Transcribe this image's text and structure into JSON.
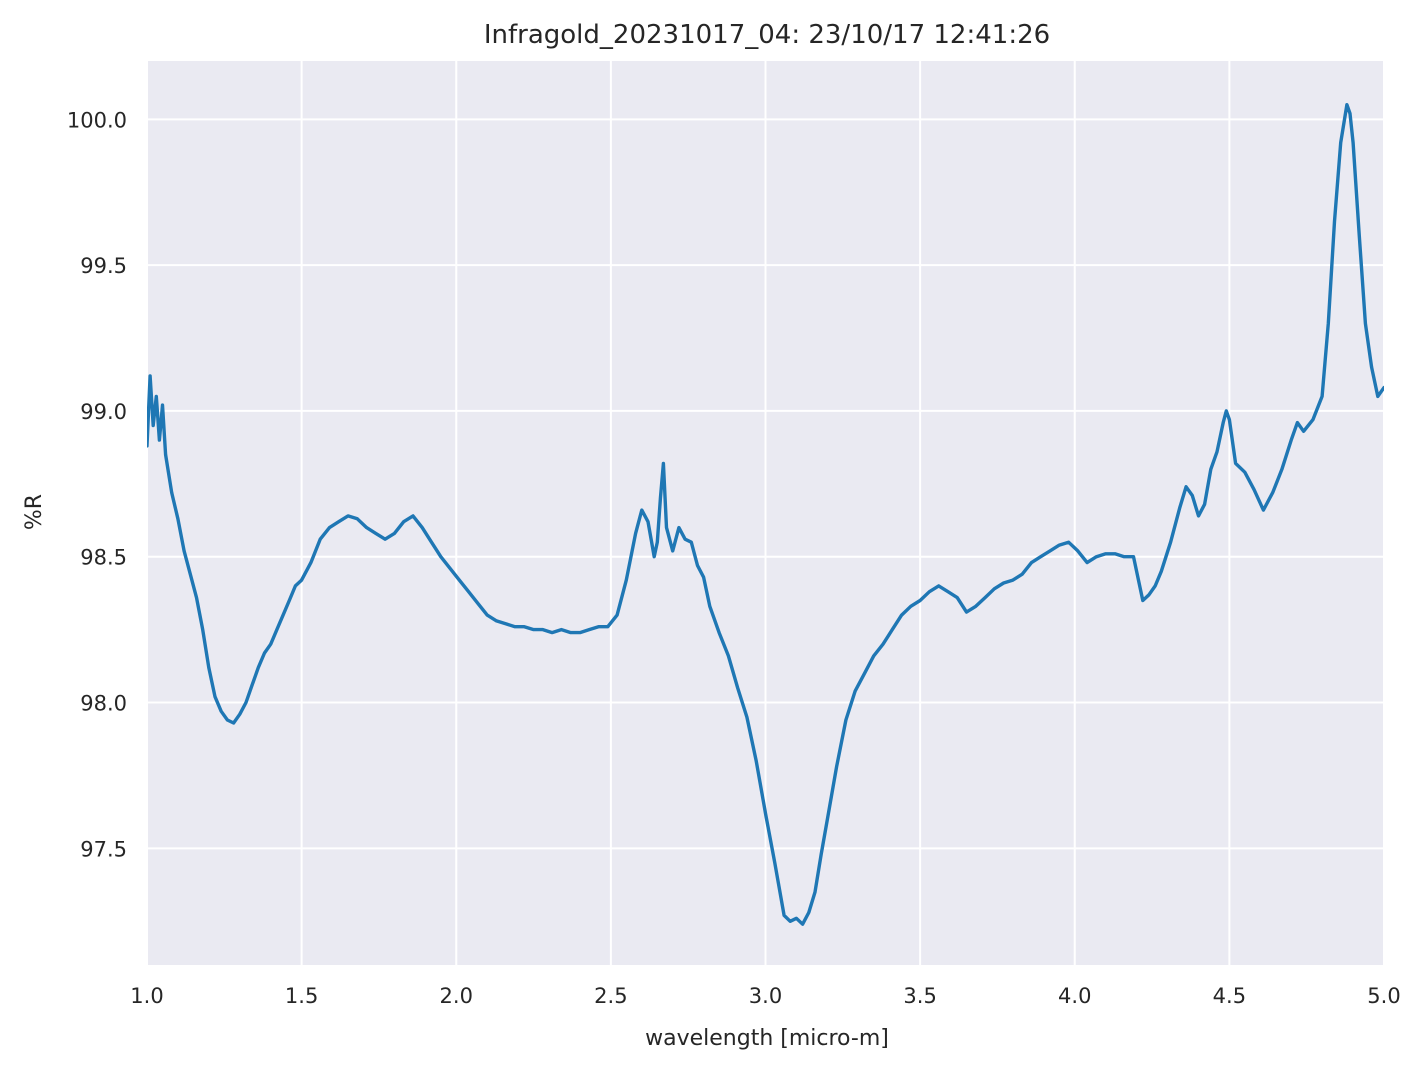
{
  "chart_data": {
    "type": "line",
    "title": "Infragold_20231017_04:  23/10/17 12:41:26",
    "xlabel": "wavelength [micro-m]",
    "ylabel": "%R",
    "xlim": [
      1.0,
      5.0
    ],
    "ylim": [
      97.1,
      100.2
    ],
    "xticks": [
      1.0,
      1.5,
      2.0,
      2.5,
      3.0,
      3.5,
      4.0,
      4.5,
      5.0
    ],
    "xtick_labels": [
      "1.0",
      "1.5",
      "2.0",
      "2.5",
      "3.0",
      "3.5",
      "4.0",
      "4.5",
      "5.0"
    ],
    "yticks": [
      97.5,
      98.0,
      98.5,
      99.0,
      99.5,
      100.0
    ],
    "ytick_labels": [
      "97.5",
      "98.0",
      "98.5",
      "99.0",
      "99.5",
      "100.0"
    ],
    "grid": true,
    "background": "#eaeaf2",
    "grid_color": "#ffffff",
    "series": [
      {
        "color": "#1f77b4",
        "x": [
          1.0,
          1.01,
          1.02,
          1.03,
          1.04,
          1.05,
          1.06,
          1.08,
          1.1,
          1.12,
          1.14,
          1.16,
          1.18,
          1.2,
          1.22,
          1.24,
          1.26,
          1.28,
          1.3,
          1.32,
          1.34,
          1.36,
          1.38,
          1.4,
          1.42,
          1.44,
          1.46,
          1.48,
          1.5,
          1.53,
          1.56,
          1.59,
          1.62,
          1.65,
          1.68,
          1.71,
          1.74,
          1.77,
          1.8,
          1.83,
          1.86,
          1.89,
          1.92,
          1.95,
          1.98,
          2.01,
          2.04,
          2.07,
          2.1,
          2.13,
          2.16,
          2.19,
          2.22,
          2.25,
          2.28,
          2.31,
          2.34,
          2.37,
          2.4,
          2.43,
          2.46,
          2.49,
          2.52,
          2.55,
          2.58,
          2.6,
          2.62,
          2.64,
          2.65,
          2.66,
          2.67,
          2.68,
          2.7,
          2.72,
          2.74,
          2.76,
          2.78,
          2.8,
          2.82,
          2.85,
          2.88,
          2.91,
          2.94,
          2.97,
          3.0,
          3.03,
          3.06,
          3.08,
          3.1,
          3.12,
          3.14,
          3.16,
          3.18,
          3.2,
          3.23,
          3.26,
          3.29,
          3.32,
          3.35,
          3.38,
          3.41,
          3.44,
          3.47,
          3.5,
          3.53,
          3.56,
          3.59,
          3.62,
          3.65,
          3.68,
          3.71,
          3.74,
          3.77,
          3.8,
          3.83,
          3.86,
          3.89,
          3.92,
          3.95,
          3.98,
          4.01,
          4.04,
          4.07,
          4.1,
          4.13,
          4.16,
          4.19,
          4.22,
          4.24,
          4.26,
          4.28,
          4.31,
          4.34,
          4.36,
          4.38,
          4.4,
          4.42,
          4.44,
          4.46,
          4.48,
          4.49,
          4.5,
          4.52,
          4.55,
          4.58,
          4.61,
          4.64,
          4.67,
          4.7,
          4.72,
          4.74,
          4.77,
          4.8,
          4.82,
          4.84,
          4.86,
          4.88,
          4.89,
          4.9,
          4.92,
          4.94,
          4.96,
          4.98,
          5.0
        ],
        "y": [
          98.88,
          99.12,
          98.95,
          99.05,
          98.9,
          99.02,
          98.85,
          98.72,
          98.63,
          98.52,
          98.44,
          98.36,
          98.25,
          98.12,
          98.02,
          97.97,
          97.94,
          97.93,
          97.96,
          98.0,
          98.06,
          98.12,
          98.17,
          98.2,
          98.25,
          98.3,
          98.35,
          98.4,
          98.42,
          98.48,
          98.56,
          98.6,
          98.62,
          98.64,
          98.63,
          98.6,
          98.58,
          98.56,
          98.58,
          98.62,
          98.64,
          98.6,
          98.55,
          98.5,
          98.46,
          98.42,
          98.38,
          98.34,
          98.3,
          98.28,
          98.27,
          98.26,
          98.26,
          98.25,
          98.25,
          98.24,
          98.25,
          98.24,
          98.24,
          98.25,
          98.26,
          98.26,
          98.3,
          98.42,
          98.58,
          98.66,
          98.62,
          98.5,
          98.55,
          98.7,
          98.82,
          98.6,
          98.52,
          98.6,
          98.56,
          98.55,
          98.47,
          98.43,
          98.33,
          98.24,
          98.16,
          98.05,
          97.95,
          97.8,
          97.62,
          97.45,
          97.27,
          97.25,
          97.26,
          97.24,
          97.28,
          97.35,
          97.48,
          97.6,
          97.78,
          97.94,
          98.04,
          98.1,
          98.16,
          98.2,
          98.25,
          98.3,
          98.33,
          98.35,
          98.38,
          98.4,
          98.38,
          98.36,
          98.31,
          98.33,
          98.36,
          98.39,
          98.41,
          98.42,
          98.44,
          98.48,
          98.5,
          98.52,
          98.54,
          98.55,
          98.52,
          98.48,
          98.5,
          98.51,
          98.51,
          98.5,
          98.5,
          98.35,
          98.37,
          98.4,
          98.45,
          98.55,
          98.67,
          98.74,
          98.71,
          98.64,
          98.68,
          98.8,
          98.86,
          98.96,
          99.0,
          98.97,
          98.82,
          98.79,
          98.73,
          98.66,
          98.72,
          98.8,
          98.9,
          98.96,
          98.93,
          98.97,
          99.05,
          99.3,
          99.65,
          99.92,
          100.05,
          100.02,
          99.92,
          99.6,
          99.3,
          99.15,
          99.05,
          99.08
        ]
      }
    ]
  }
}
